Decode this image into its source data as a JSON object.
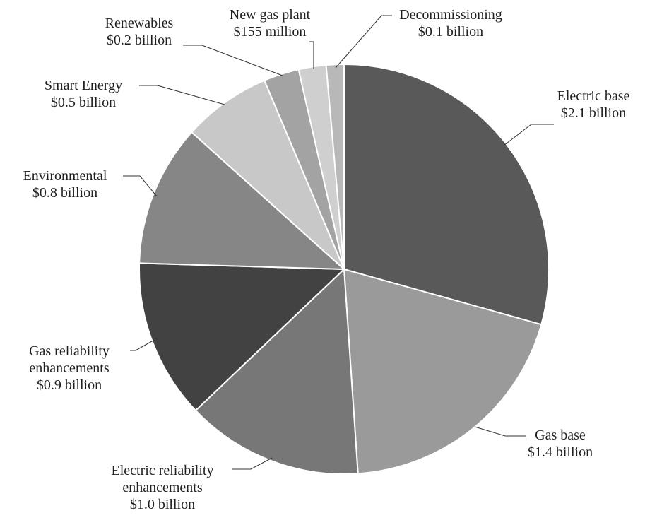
{
  "chart_data": {
    "type": "pie",
    "title": "",
    "start_angle_deg": 0,
    "direction": "clockwise",
    "slices": [
      {
        "label_lines": [
          "Electric base",
          "$2.1 billion"
        ],
        "value": 2.1,
        "color": "#595959"
      },
      {
        "label_lines": [
          "Gas base",
          "$1.4 billion"
        ],
        "value": 1.4,
        "color": "#9a9a9a"
      },
      {
        "label_lines": [
          "Electric reliability",
          "enhancements",
          "$1.0 billion"
        ],
        "value": 1.0,
        "color": "#777777"
      },
      {
        "label_lines": [
          "Gas reliability",
          "enhancements",
          "$0.9 billion"
        ],
        "value": 0.9,
        "color": "#424242"
      },
      {
        "label_lines": [
          "Environmental",
          "$0.8 billion"
        ],
        "value": 0.8,
        "color": "#868686"
      },
      {
        "label_lines": [
          "Smart Energy",
          "$0.5 billion"
        ],
        "value": 0.5,
        "color": "#c8c8c8"
      },
      {
        "label_lines": [
          "Renewables",
          "$0.2 billion"
        ],
        "value": 0.2,
        "color": "#a3a3a3"
      },
      {
        "label_lines": [
          "New gas plant",
          "$155 million"
        ],
        "value": 0.155,
        "color": "#cfcfcf"
      },
      {
        "label_lines": [
          "Decommissioning",
          "$0.1 billion"
        ],
        "value": 0.1,
        "color": "#b8b8b8"
      }
    ]
  }
}
